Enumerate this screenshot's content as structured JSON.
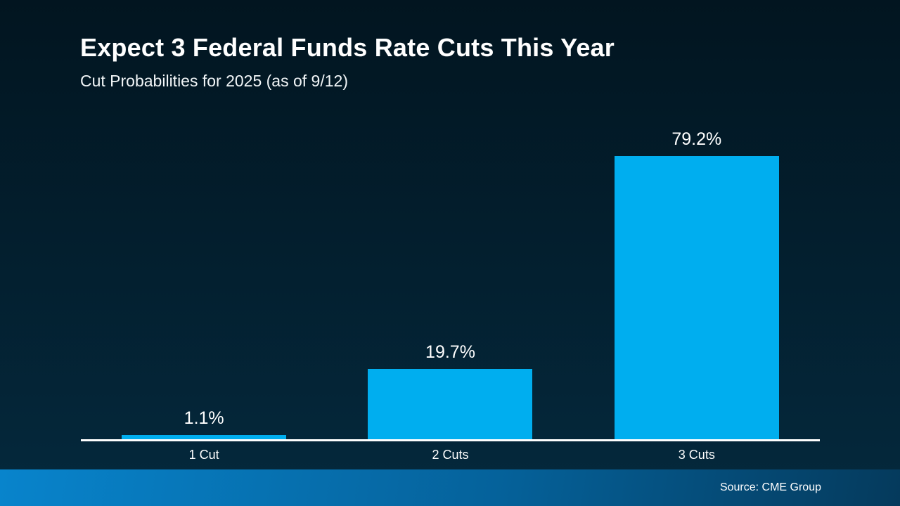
{
  "slide": {
    "title": "Expect 3 Federal Funds Rate Cuts This Year",
    "subtitle": "Cut Probabilities for 2025 (as of 9/12)",
    "source": "Source: CME Group"
  },
  "colors": {
    "bar": "#00AEEF",
    "background_top": "#021520",
    "background_bottom": "#04293D",
    "footer_left": "#0884CC",
    "footer_right": "#053A5C",
    "axis": "#FFFFFF",
    "text": "#FFFFFF"
  },
  "chart_data": {
    "type": "bar",
    "title": "Expect 3 Federal Funds Rate Cuts This Year",
    "subtitle": "Cut Probabilities for 2025 (as of 9/12)",
    "categories": [
      "1 Cut",
      "2 Cuts",
      "3 Cuts"
    ],
    "values": [
      1.1,
      19.7,
      79.2
    ],
    "value_labels": [
      "1.1%",
      "19.7%",
      "79.2%"
    ],
    "xlabel": "",
    "ylabel": "",
    "ylim": [
      0,
      85
    ],
    "grid": false,
    "legend_position": "none",
    "bar_color": "#00AEEF",
    "source": "Source: CME Group"
  }
}
